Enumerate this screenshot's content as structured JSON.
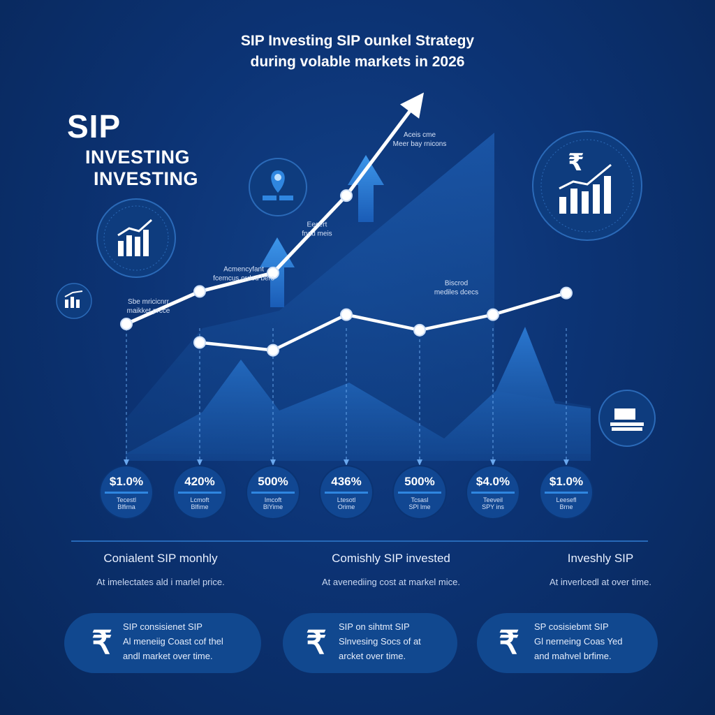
{
  "header": {
    "title_line1": "SIP Investing SIP ounkel Strategy",
    "title_line2": "during volable markets in 2026"
  },
  "brand": {
    "line1": "SIP",
    "line2": "INVESTING",
    "line3": "INVESTING"
  },
  "icons": [
    "growth-bars-icon",
    "location-book-icon",
    "small-growth-icon",
    "rupee-growth-icon",
    "books-icon",
    "rupee-icon"
  ],
  "colors": {
    "background": "#0c3374",
    "accent": "#2f86e0",
    "line": "#ffffff"
  },
  "chart_data": {
    "type": "line",
    "series": [
      {
        "name": "",
        "points": [
          [
            0,
            0.12
          ],
          [
            1,
            0.33
          ],
          [
            2,
            0.45
          ],
          [
            3,
            0.95
          ],
          [
            4,
            1.58
          ]
        ]
      },
      {
        "name": "",
        "points": [
          [
            1,
            0.0
          ],
          [
            2,
            -0.05
          ],
          [
            3,
            0.18
          ],
          [
            4,
            0.08
          ],
          [
            5,
            0.18
          ],
          [
            6,
            0.32
          ]
        ]
      }
    ],
    "xlim": [
      0,
      6
    ],
    "ylim": [
      -0.3,
      1.65
    ],
    "annotations": [
      {
        "x": 0.3,
        "y": 0.25,
        "text": [
          "Sbe mricicnrr",
          "maikket prcce"
        ]
      },
      {
        "x": 1.6,
        "y": 0.46,
        "text": [
          "Acmencyfant",
          "fcemcus orded bers"
        ]
      },
      {
        "x": 2.6,
        "y": 0.75,
        "text": [
          "Eecert",
          "fnad meis"
        ]
      },
      {
        "x": 4.0,
        "y": 1.33,
        "text": [
          "Aceis cme",
          "Meer bay rnicons"
        ]
      },
      {
        "x": 4.5,
        "y": 0.37,
        "text": [
          "Biscrod",
          "mediles dcecs"
        ]
      }
    ],
    "value_badges": [
      {
        "value": "$1.0%",
        "label": [
          "Tecestl",
          "Blfirna"
        ]
      },
      {
        "value": "420%",
        "label": [
          "Lcmoft",
          "Blfime"
        ]
      },
      {
        "value": "500%",
        "label": [
          "Imcoft",
          "BlYime"
        ]
      },
      {
        "value": "436%",
        "label": [
          "Ltesotl",
          "Orime"
        ]
      },
      {
        "value": "500%",
        "label": [
          "Tcsasl",
          "SPl lme"
        ]
      },
      {
        "value": "$4.0%",
        "label": [
          "Teeveil",
          "SPY ins"
        ]
      },
      {
        "value": "$1.0%",
        "label": [
          "Leesefl",
          "Brne"
        ]
      }
    ]
  },
  "columns": [
    {
      "heading": "Conialent SIP monhly",
      "sub": "At imelectates ald i marlel price."
    },
    {
      "heading": "Comishly SIP invested",
      "sub": "At avenediing cost at markel mice."
    },
    {
      "heading": "Inveshly SIP",
      "sub": "At inverlcedl at over time."
    }
  ],
  "cards": [
    {
      "line1": "SIP consisienet SIP",
      "line2": "Al meneiig Coast cof thel",
      "line3": "andl market over time."
    },
    {
      "line1": "SIP on sihtmt SIP",
      "line2": "Slnvesing Socs of at",
      "line3": "arcket over time."
    },
    {
      "line1": "SP cosisiebmt SIP",
      "line2": "Gl nerneing Coas Yed",
      "line3": "and mahvel brfime."
    }
  ]
}
